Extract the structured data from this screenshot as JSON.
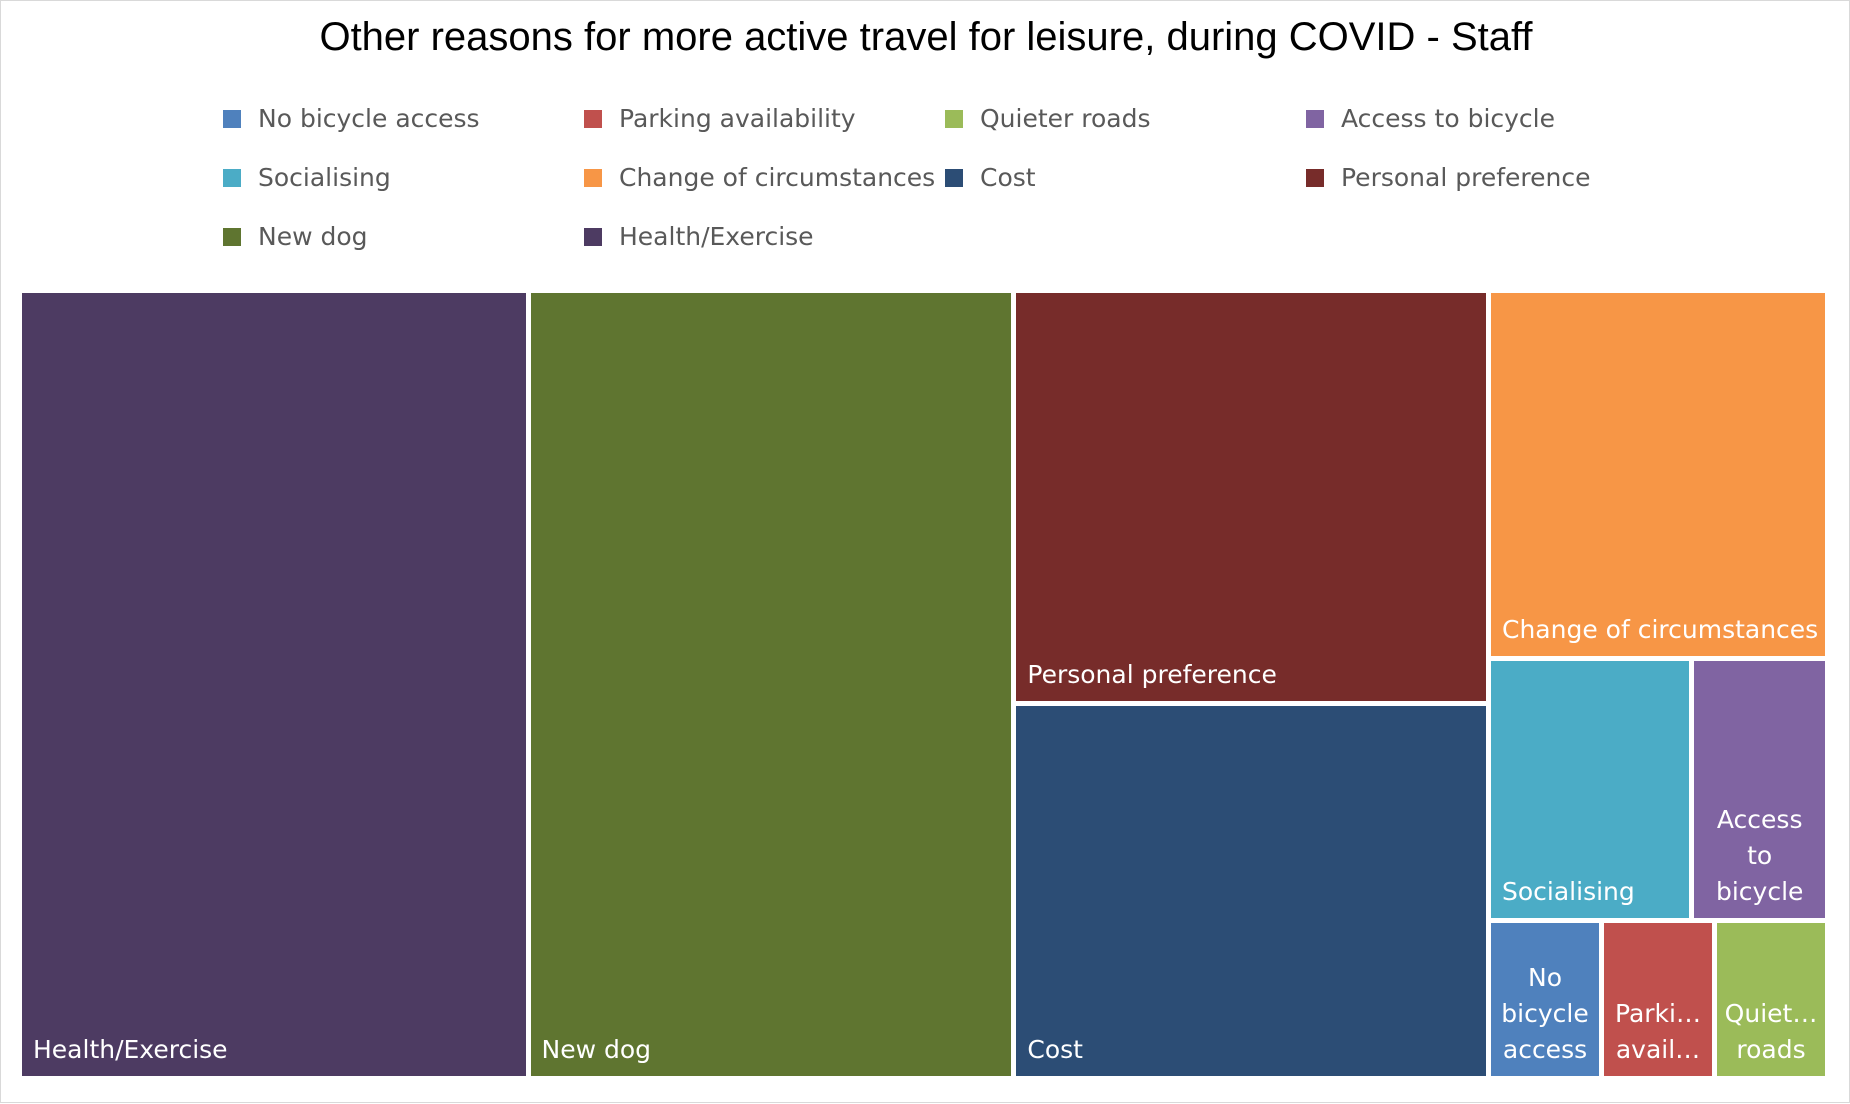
{
  "chart_data": {
    "type": "treemap",
    "title": "Other reasons for more active travel for leisure, during COVID - Staff",
    "legend_position": "top",
    "legend": [
      {
        "name": "No bicycle access",
        "color": "#4F81BD"
      },
      {
        "name": "Parking availability",
        "color": "#C0504D"
      },
      {
        "name": "Quieter roads",
        "color": "#9BBB59"
      },
      {
        "name": "Access to bicycle",
        "color": "#8064A2"
      },
      {
        "name": "Socialising",
        "color": "#4BACC6"
      },
      {
        "name": "Change of circumstances",
        "color": "#F79646"
      },
      {
        "name": "Cost",
        "color": "#2C4D75"
      },
      {
        "name": "Personal preference",
        "color": "#772C2A"
      },
      {
        "name": "New dog",
        "color": "#5F7530"
      },
      {
        "name": "Health/Exercise",
        "color": "#4D3B62"
      }
    ],
    "tiles": [
      {
        "name": "Health/Exercise",
        "label": "Health/Exercise",
        "value": 9,
        "color": "#4D3B62"
      },
      {
        "name": "New dog",
        "label": "New dog",
        "value": 8.6,
        "color": "#5F7530"
      },
      {
        "name": "Personal preference",
        "label": "Personal preference",
        "value": 4.4,
        "color": "#772C2A"
      },
      {
        "name": "Cost",
        "label": "Cost",
        "value": 4,
        "color": "#2C4D75"
      },
      {
        "name": "Change of circumstances",
        "label": "Change of circumstances",
        "value": 2.8,
        "color": "#F79646"
      },
      {
        "name": "Socialising",
        "label": "Socialising",
        "value": 1.2,
        "color": "#4BACC6"
      },
      {
        "name": "Access to bicycle",
        "label": "Access to bicycle",
        "value": 0.8,
        "color": "#8064A2"
      },
      {
        "name": "No bicycle access",
        "label": "No bicycle access",
        "value": 0.4,
        "color": "#4F81BD"
      },
      {
        "name": "Parking availability",
        "label": "Parki… avail…",
        "value": 0.4,
        "color": "#C0504D"
      },
      {
        "name": "Quieter roads",
        "label": "Quiet… roads",
        "value": 0.4,
        "color": "#9BBB59"
      }
    ]
  }
}
